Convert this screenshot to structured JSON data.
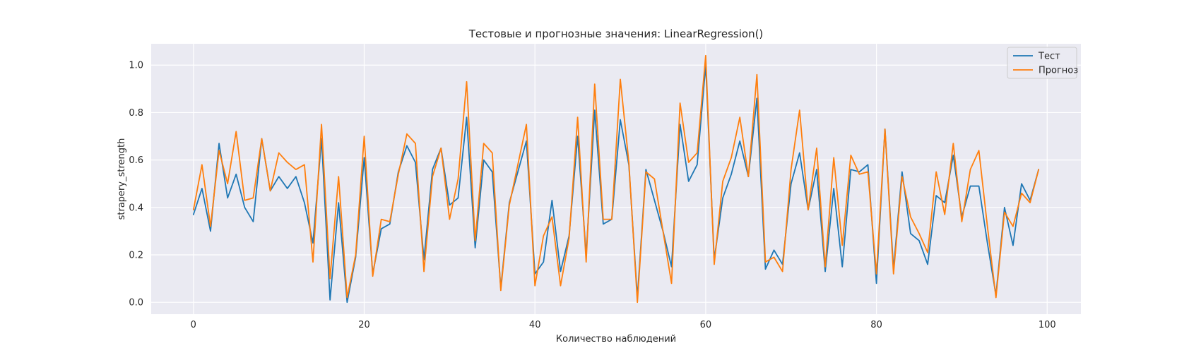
{
  "chart_data": {
    "type": "line",
    "title": "Тестовые и прогнозные значения: LinearRegression()",
    "xlabel": "Количество наблюдений",
    "ylabel": "strapery_strength",
    "xlim": [
      -4.95,
      103.95
    ],
    "ylim": [
      -0.05,
      1.09
    ],
    "xticks": [
      0,
      20,
      40,
      60,
      80,
      100
    ],
    "yticks": [
      0.0,
      0.2,
      0.4,
      0.6,
      0.8,
      1.0
    ],
    "grid": true,
    "legend_position": "top-right",
    "x": [
      0,
      1,
      2,
      3,
      4,
      5,
      6,
      7,
      8,
      9,
      10,
      11,
      12,
      13,
      14,
      15,
      16,
      17,
      18,
      19,
      20,
      21,
      22,
      23,
      24,
      25,
      26,
      27,
      28,
      29,
      30,
      31,
      32,
      33,
      34,
      35,
      36,
      37,
      38,
      39,
      40,
      41,
      42,
      43,
      44,
      45,
      46,
      47,
      48,
      49,
      50,
      51,
      52,
      53,
      54,
      55,
      56,
      57,
      58,
      59,
      60,
      61,
      62,
      63,
      64,
      65,
      66,
      67,
      68,
      69,
      70,
      71,
      72,
      73,
      74,
      75,
      76,
      77,
      78,
      79,
      80,
      81,
      82,
      83,
      84,
      85,
      86,
      87,
      88,
      89,
      90,
      91,
      92,
      93,
      94,
      95,
      96,
      97,
      98,
      99
    ],
    "series": [
      {
        "name": "Тест",
        "color": "#1f77b4",
        "values": [
          0.37,
          0.48,
          0.3,
          0.67,
          0.44,
          0.54,
          0.4,
          0.34,
          0.69,
          0.47,
          0.53,
          0.48,
          0.53,
          0.42,
          0.25,
          0.69,
          0.01,
          0.42,
          0.0,
          0.19,
          0.61,
          0.12,
          0.31,
          0.33,
          0.55,
          0.66,
          0.59,
          0.18,
          0.56,
          0.65,
          0.41,
          0.44,
          0.78,
          0.23,
          0.6,
          0.55,
          0.06,
          0.42,
          0.55,
          0.68,
          0.12,
          0.17,
          0.43,
          0.13,
          0.28,
          0.7,
          0.2,
          0.81,
          0.33,
          0.35,
          0.77,
          0.58,
          0.02,
          0.56,
          0.43,
          0.3,
          0.15,
          0.75,
          0.51,
          0.58,
          1.0,
          0.18,
          0.44,
          0.54,
          0.68,
          0.53,
          0.86,
          0.14,
          0.22,
          0.16,
          0.5,
          0.63,
          0.39,
          0.56,
          0.13,
          0.48,
          0.15,
          0.56,
          0.55,
          0.58,
          0.08,
          0.73,
          0.14,
          0.55,
          0.29,
          0.26,
          0.16,
          0.45,
          0.42,
          0.62,
          0.36,
          0.49,
          0.49,
          0.25,
          0.03,
          0.4,
          0.24,
          0.5,
          0.43,
          0.56
        ]
      },
      {
        "name": "Прогноз",
        "color": "#ff7f0e",
        "values": [
          0.39,
          0.58,
          0.32,
          0.64,
          0.5,
          0.72,
          0.43,
          0.44,
          0.69,
          0.47,
          0.63,
          0.59,
          0.56,
          0.58,
          0.17,
          0.75,
          0.1,
          0.53,
          0.02,
          0.2,
          0.7,
          0.11,
          0.35,
          0.34,
          0.54,
          0.71,
          0.67,
          0.13,
          0.53,
          0.65,
          0.35,
          0.52,
          0.93,
          0.26,
          0.67,
          0.63,
          0.05,
          0.41,
          0.58,
          0.75,
          0.07,
          0.28,
          0.36,
          0.07,
          0.27,
          0.78,
          0.17,
          0.92,
          0.35,
          0.35,
          0.94,
          0.59,
          0.0,
          0.55,
          0.52,
          0.3,
          0.08,
          0.84,
          0.59,
          0.63,
          1.04,
          0.16,
          0.51,
          0.61,
          0.78,
          0.53,
          0.96,
          0.17,
          0.19,
          0.13,
          0.56,
          0.81,
          0.39,
          0.65,
          0.15,
          0.61,
          0.24,
          0.62,
          0.54,
          0.55,
          0.12,
          0.73,
          0.12,
          0.53,
          0.36,
          0.29,
          0.21,
          0.55,
          0.37,
          0.67,
          0.34,
          0.56,
          0.64,
          0.32,
          0.02,
          0.38,
          0.32,
          0.46,
          0.42,
          0.56
        ]
      }
    ]
  }
}
